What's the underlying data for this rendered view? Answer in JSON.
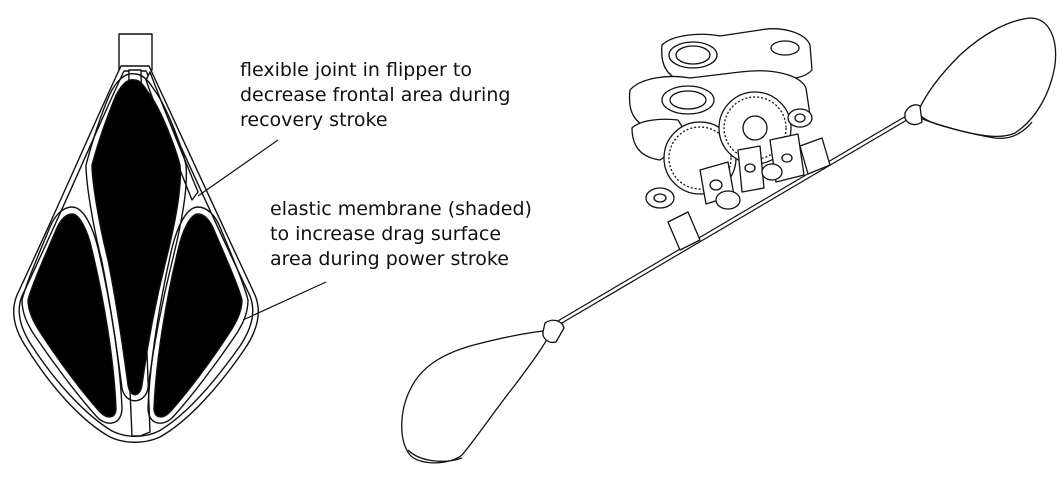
{
  "annotations": {
    "joint": {
      "lines": [
        "flexible joint in flipper to",
        "decrease frontal area during",
        "recovery stroke"
      ]
    },
    "membrane": {
      "lines": [
        "elastic membrane (shaded)",
        "to increase drag surface",
        "area during power stroke"
      ]
    }
  },
  "colors": {
    "stroke": "#111111",
    "membrane_fill": "#000000",
    "background": "#ffffff"
  }
}
